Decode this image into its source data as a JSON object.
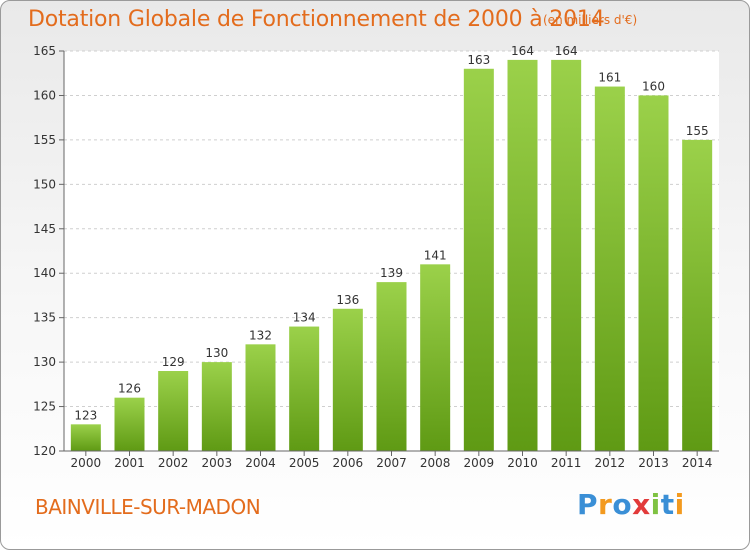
{
  "header": {
    "title": "Dotation Globale de Fonctionnement de 2000 à 2014",
    "subtitle": "(en milliers d'€)"
  },
  "footer": {
    "place": "BAINVILLE-SUR-MADON",
    "logo_text": "Proxiti"
  },
  "colors": {
    "accent": "#e36c1d",
    "bar_light": "#9bd14a",
    "bar_dark": "#5f9a14",
    "logo_letters": [
      "#3a8fd6",
      "#f39a1f",
      "#3a8fd6",
      "#e23a3a",
      "#7fc242",
      "#3a8fd6",
      "#f39a1f"
    ]
  },
  "chart_data": {
    "type": "bar",
    "categories": [
      "2000",
      "2001",
      "2002",
      "2003",
      "2004",
      "2005",
      "2006",
      "2007",
      "2008",
      "2009",
      "2010",
      "2011",
      "2012",
      "2013",
      "2014"
    ],
    "values": [
      123,
      126,
      129,
      130,
      132,
      134,
      136,
      139,
      141,
      163,
      164,
      164,
      161,
      160,
      155
    ],
    "ylim": [
      120,
      165
    ],
    "yticks": [
      120,
      125,
      130,
      135,
      140,
      145,
      150,
      155,
      160,
      165
    ],
    "grid": true,
    "legend": "none"
  }
}
